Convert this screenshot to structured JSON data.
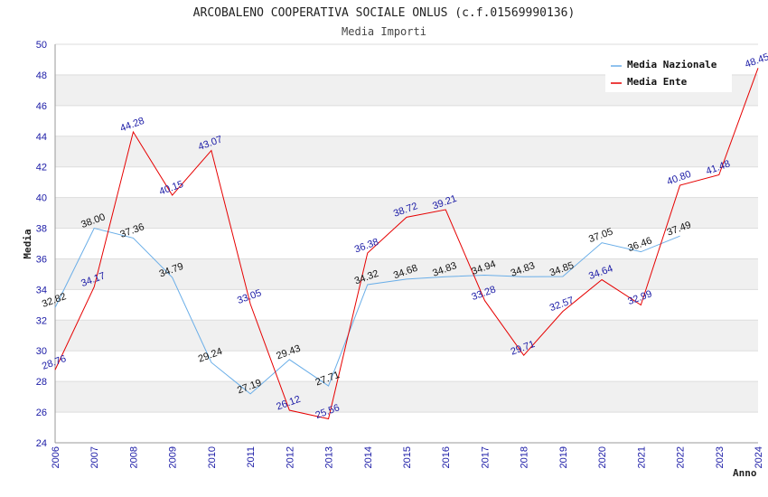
{
  "chart_data": {
    "type": "line",
    "title": "ARCOBALENO COOPERATIVA SOCIALE ONLUS (c.f.01569990136)",
    "subtitle": "Media Importi",
    "xlabel": "Anno",
    "ylabel": "Media",
    "ylim": [
      24,
      50
    ],
    "yticks": [
      24,
      26,
      28,
      30,
      32,
      34,
      36,
      38,
      40,
      42,
      44,
      46,
      48,
      50
    ],
    "categories": [
      "2006",
      "2007",
      "2008",
      "2009",
      "2010",
      "2011",
      "2012",
      "2013",
      "2014",
      "2015",
      "2016",
      "2017",
      "2018",
      "2019",
      "2020",
      "2021",
      "2022",
      "2023",
      "2024"
    ],
    "grid": true,
    "legend_position": "top-right",
    "series": [
      {
        "name": "Media Nazionale",
        "color": "#6aaee8",
        "label_color": "#111111",
        "values": [
          32.82,
          38.0,
          37.36,
          34.79,
          29.24,
          27.19,
          29.43,
          27.71,
          34.32,
          34.68,
          34.83,
          34.94,
          34.83,
          34.85,
          37.05,
          36.46,
          37.49,
          null,
          null
        ],
        "labels": [
          "32.82",
          "38.00",
          "37.36",
          "34.79",
          "29.24",
          "27.19",
          "29.43",
          "27.71",
          "34.32",
          "34.68",
          "34.83",
          "34.94",
          "34.83",
          "34.85",
          "37.05",
          "36.46",
          "37.49",
          "",
          ""
        ]
      },
      {
        "name": "Media Ente",
        "color": "#e60000",
        "label_color": "#1a1aa6",
        "values": [
          28.76,
          34.17,
          44.28,
          40.15,
          43.07,
          33.05,
          26.12,
          25.56,
          36.38,
          38.72,
          39.21,
          33.28,
          29.71,
          32.57,
          34.64,
          32.99,
          40.8,
          41.48,
          48.45
        ],
        "labels": [
          "28.76",
          "34.17",
          "44.28",
          "40.15",
          "43.07",
          "33.05",
          "26.12",
          "25.56",
          "36.38",
          "38.72",
          "39.21",
          "33.28",
          "29.71",
          "32.57",
          "34.64",
          "32.99",
          "40.80",
          "41.48",
          "48.45"
        ]
      }
    ]
  }
}
